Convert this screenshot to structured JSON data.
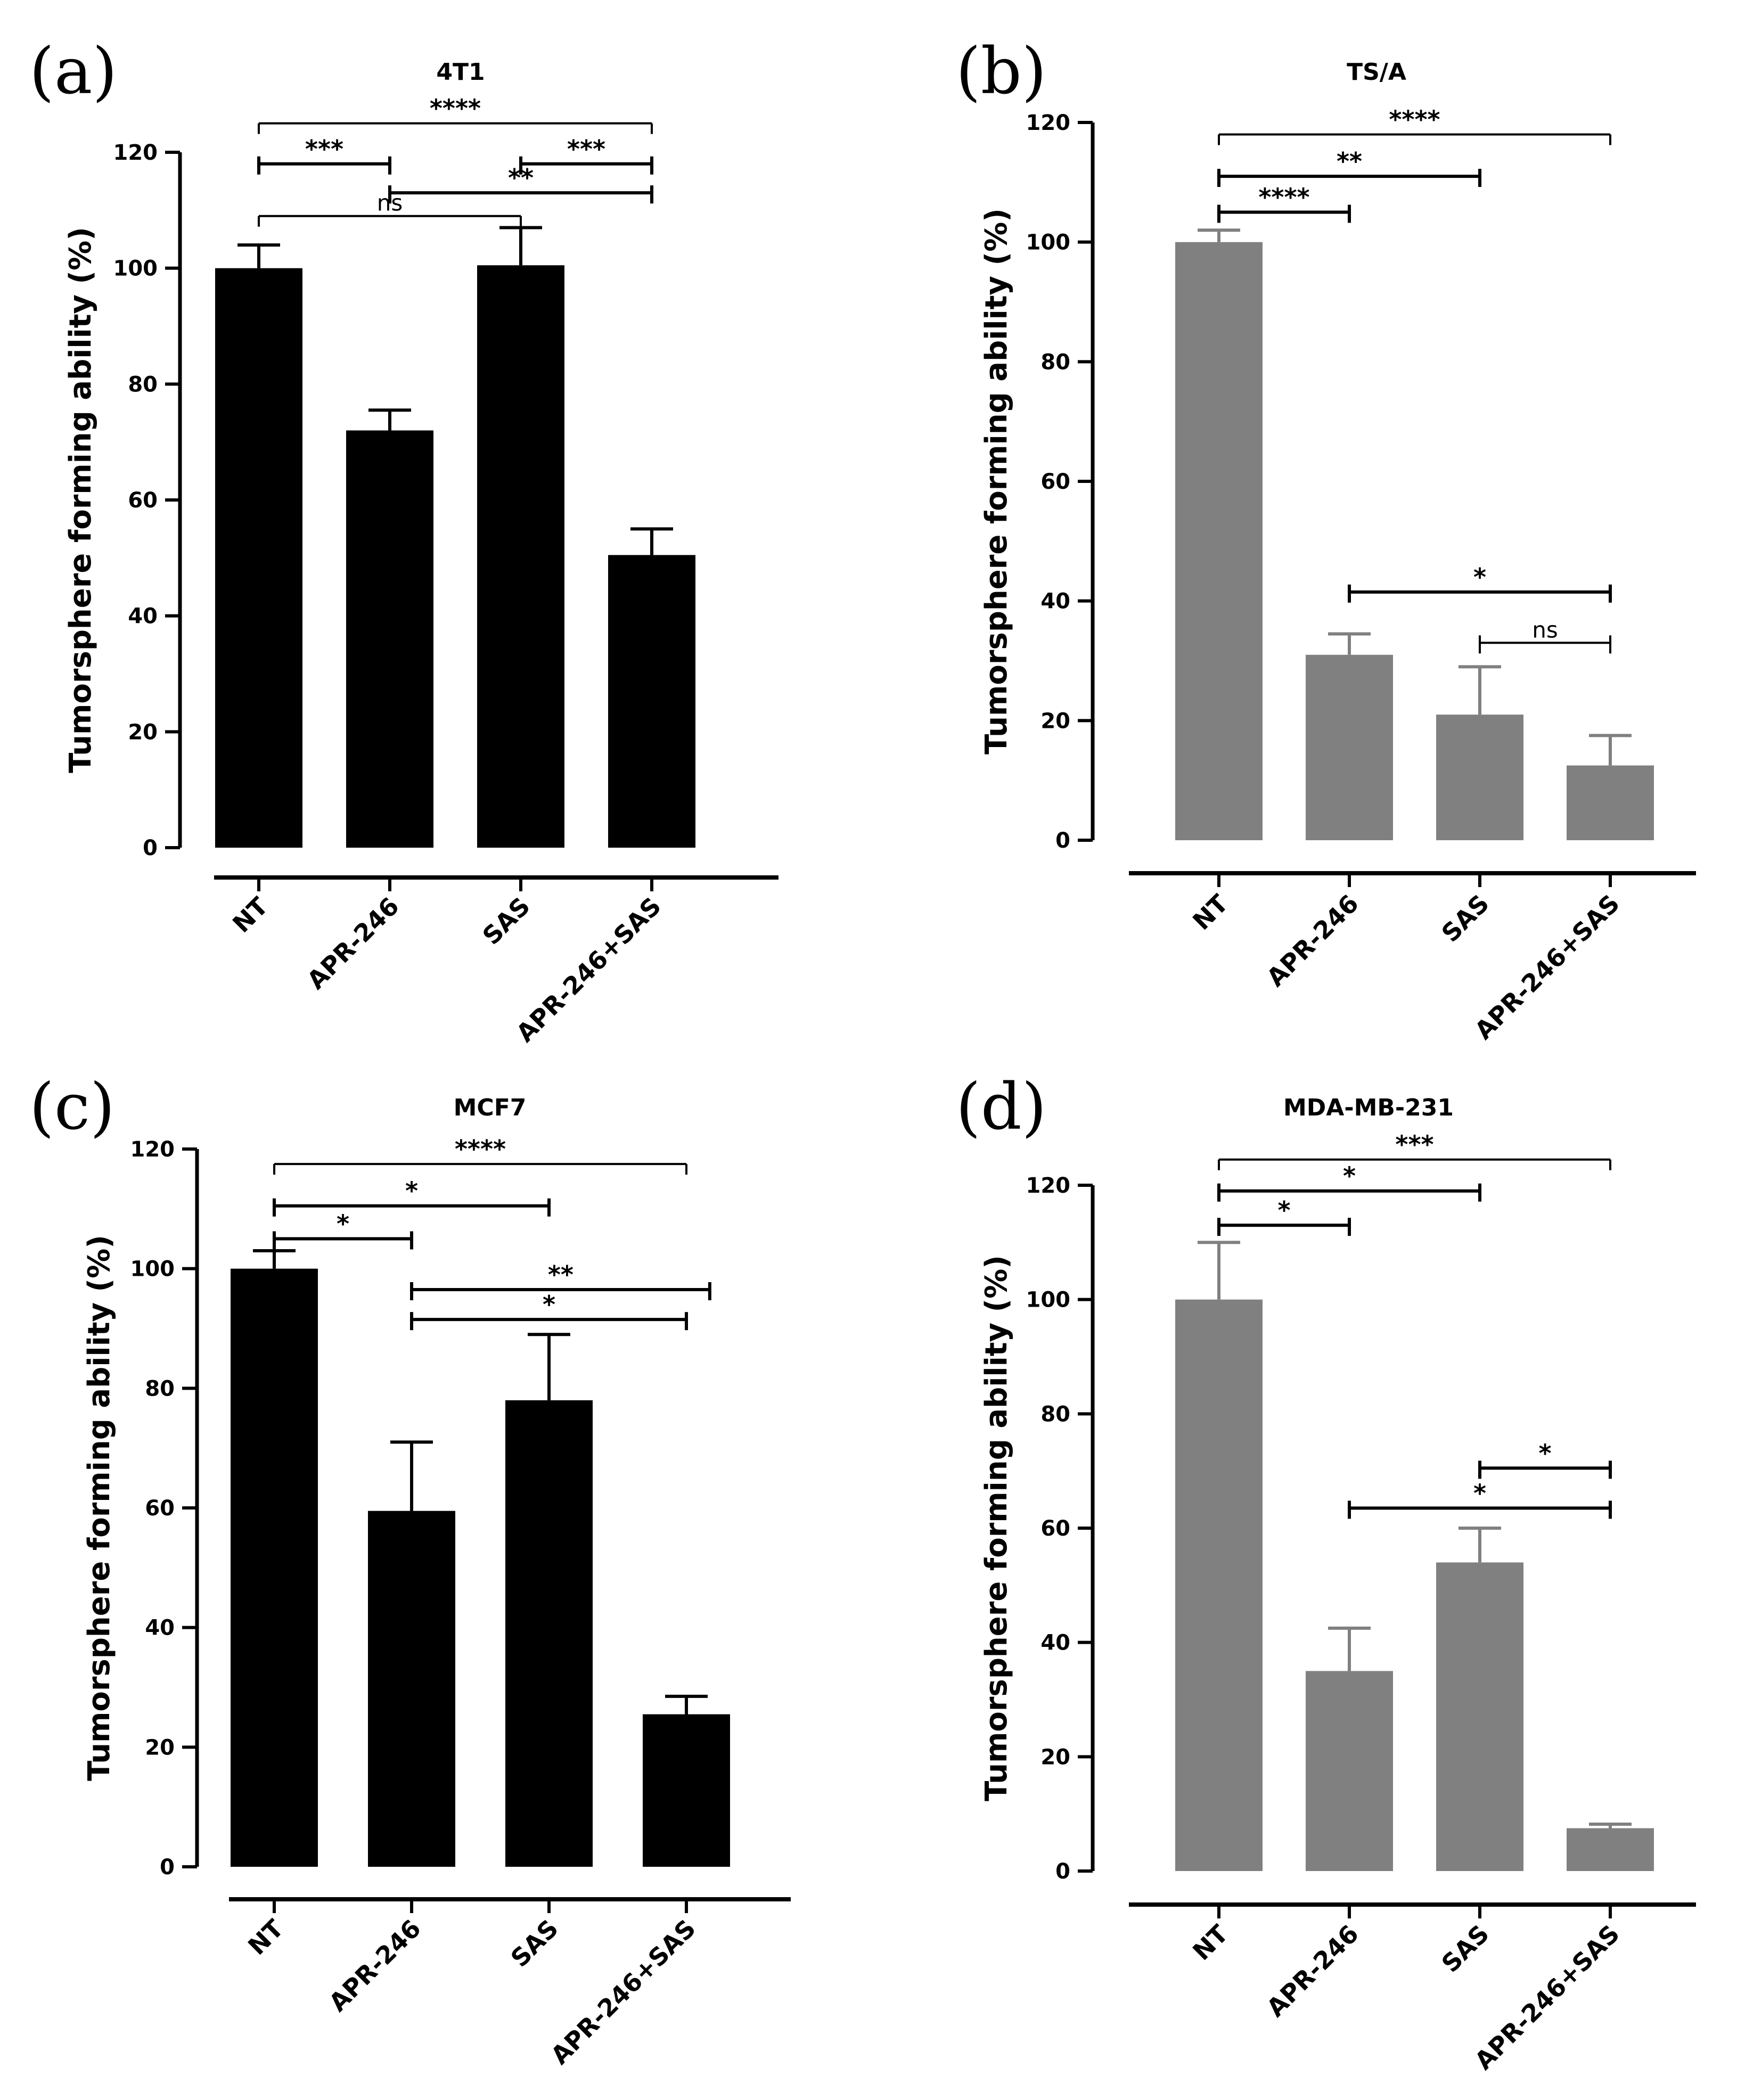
{
  "figure_label": "Tumorsphere forming ability panels",
  "chart_data": [
    {
      "type": "bar",
      "panel": "(a)",
      "title": "4T1",
      "xlabel": "",
      "ylabel": "Tumorsphere forming ability (%)",
      "ylim": [
        0,
        120
      ],
      "yticks": [
        0,
        20,
        40,
        60,
        80,
        100,
        120
      ],
      "categories": [
        "NT",
        "APR-246",
        "SAS",
        "APR-246+SAS"
      ],
      "values": [
        100,
        72,
        100.5,
        50.5
      ],
      "errors": [
        4,
        3.5,
        6.5,
        4.5
      ],
      "bar_color": "#000000",
      "comparisons": [
        {
          "from": 0,
          "to": 3,
          "y": 125,
          "label": "****",
          "caps": "down"
        },
        {
          "from": 0,
          "to": 1,
          "y": 118,
          "label": "***",
          "caps": "both"
        },
        {
          "from": 2,
          "to": 3,
          "y": 118,
          "label": "***",
          "caps": "both"
        },
        {
          "from": 1,
          "to": 3,
          "y": 113,
          "label": "**",
          "caps": "both"
        },
        {
          "from": 0,
          "to": 2,
          "y": 109,
          "label": "ns",
          "caps": "down"
        }
      ]
    },
    {
      "type": "bar",
      "panel": "(b)",
      "title": "TS/A",
      "xlabel": "",
      "ylabel": "Tumorsphere forming ability (%)",
      "ylim": [
        0,
        120
      ],
      "yticks": [
        0,
        20,
        40,
        60,
        80,
        100,
        120
      ],
      "categories": [
        "NT",
        "APR-246",
        "SAS",
        "APR-246+SAS"
      ],
      "values": [
        100,
        31,
        21,
        12.5
      ],
      "errors": [
        2,
        3.5,
        8,
        5
      ],
      "bar_color": "#808080",
      "comparisons": [
        {
          "from": 0,
          "to": 3,
          "y": 118,
          "label": "****",
          "caps": "down"
        },
        {
          "from": 0,
          "to": 2,
          "y": 111,
          "label": "**",
          "caps": "both"
        },
        {
          "from": 0,
          "to": 1,
          "y": 105,
          "label": "****",
          "caps": "both"
        },
        {
          "from": 1,
          "to": 3,
          "y": 41.5,
          "label": "*",
          "caps": "both"
        },
        {
          "from": 2,
          "to": 3,
          "y": 33,
          "label": "ns",
          "caps": "both"
        }
      ]
    },
    {
      "type": "bar",
      "panel": "(c)",
      "title": "MCF7",
      "xlabel": "",
      "ylabel": "Tumorsphere forming ability (%)",
      "ylim": [
        0,
        120
      ],
      "yticks": [
        0,
        20,
        40,
        60,
        80,
        100,
        120
      ],
      "categories": [
        "NT",
        "APR-246",
        "SAS",
        "APR-246+SAS"
      ],
      "values": [
        100,
        59.5,
        78,
        25.5
      ],
      "errors": [
        3,
        11.5,
        11,
        3
      ],
      "bar_color": "#000000",
      "comparisons": [
        {
          "from": 0,
          "to": 3,
          "y": 117.5,
          "label": "****",
          "caps": "down"
        },
        {
          "from": 0,
          "to": 2,
          "y": 110.5,
          "label": "*",
          "caps": "both"
        },
        {
          "from": 0,
          "to": 1,
          "y": 105,
          "label": "*",
          "caps": "both"
        },
        {
          "from": 1,
          "to": 3,
          "y": 96.5,
          "label": "**",
          "caps": "both",
          "end_offset": 0.17
        },
        {
          "from": 1,
          "to": 3,
          "y": 91.5,
          "label": "*",
          "caps": "both"
        }
      ]
    },
    {
      "type": "bar",
      "panel": "(d)",
      "title": "MDA-MB-231",
      "xlabel": "",
      "ylabel": "Tumorsphere forming ability (%)",
      "ylim": [
        0,
        120
      ],
      "yticks": [
        0,
        20,
        40,
        60,
        80,
        100,
        120
      ],
      "categories": [
        "NT",
        "APR-246",
        "SAS",
        "APR-246+SAS"
      ],
      "values": [
        100,
        35,
        54,
        7.5
      ],
      "errors": [
        10,
        7.5,
        6,
        0.7
      ],
      "bar_color": "#808080",
      "comparisons": [
        {
          "from": 0,
          "to": 3,
          "y": 124.5,
          "label": "***",
          "caps": "down"
        },
        {
          "from": 0,
          "to": 2,
          "y": 119,
          "label": "*",
          "caps": "both"
        },
        {
          "from": 0,
          "to": 1,
          "y": 113,
          "label": "*",
          "caps": "both"
        },
        {
          "from": 2,
          "to": 3,
          "y": 70.5,
          "label": "*",
          "caps": "both"
        },
        {
          "from": 1,
          "to": 3,
          "y": 63.5,
          "label": "*",
          "caps": "both"
        }
      ]
    }
  ]
}
